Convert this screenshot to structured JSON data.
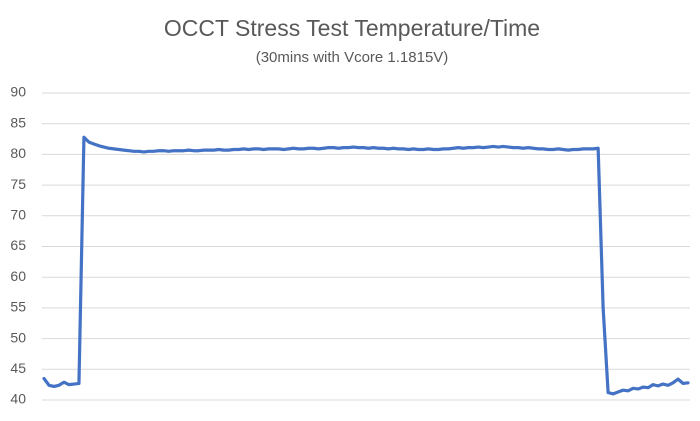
{
  "chart_data": {
    "type": "line",
    "title": "OCCT Stress Test Temperature/Time",
    "subtitle": "(30mins with Vcore 1.1815V)",
    "ylim": [
      40,
      90
    ],
    "yticks": [
      40,
      45,
      50,
      55,
      60,
      65,
      70,
      75,
      80,
      85,
      90
    ],
    "grid": true,
    "series": [
      {
        "color": "#4472c4",
        "values": [
          43.5,
          42.4,
          42.2,
          42.4,
          42.9,
          42.5,
          42.6,
          42.7,
          82.8,
          82.0,
          81.7,
          81.4,
          81.2,
          81.0,
          80.9,
          80.8,
          80.7,
          80.6,
          80.5,
          80.5,
          80.4,
          80.5,
          80.5,
          80.6,
          80.6,
          80.5,
          80.6,
          80.6,
          80.6,
          80.7,
          80.6,
          80.6,
          80.7,
          80.7,
          80.7,
          80.8,
          80.7,
          80.7,
          80.8,
          80.8,
          80.9,
          80.8,
          80.9,
          80.9,
          80.8,
          80.9,
          80.9,
          80.9,
          80.8,
          80.9,
          81.0,
          80.9,
          80.9,
          81.0,
          81.0,
          80.9,
          81.0,
          81.1,
          81.1,
          81.0,
          81.1,
          81.1,
          81.2,
          81.1,
          81.1,
          81.0,
          81.1,
          81.0,
          81.0,
          80.9,
          81.0,
          80.9,
          80.9,
          80.8,
          80.9,
          80.8,
          80.8,
          80.9,
          80.8,
          80.8,
          80.9,
          80.9,
          81.0,
          81.1,
          81.0,
          81.1,
          81.1,
          81.2,
          81.1,
          81.2,
          81.3,
          81.2,
          81.3,
          81.2,
          81.1,
          81.1,
          81.0,
          81.1,
          81.0,
          80.9,
          80.9,
          80.8,
          80.8,
          80.9,
          80.8,
          80.7,
          80.8,
          80.8,
          80.9,
          80.9,
          80.9,
          81.0,
          55,
          41.2,
          41.0,
          41.3,
          41.6,
          41.5,
          41.9,
          41.8,
          42.1,
          42.0,
          42.5,
          42.3,
          42.6,
          42.4,
          42.8,
          43.4,
          42.7,
          42.8
        ]
      }
    ]
  }
}
